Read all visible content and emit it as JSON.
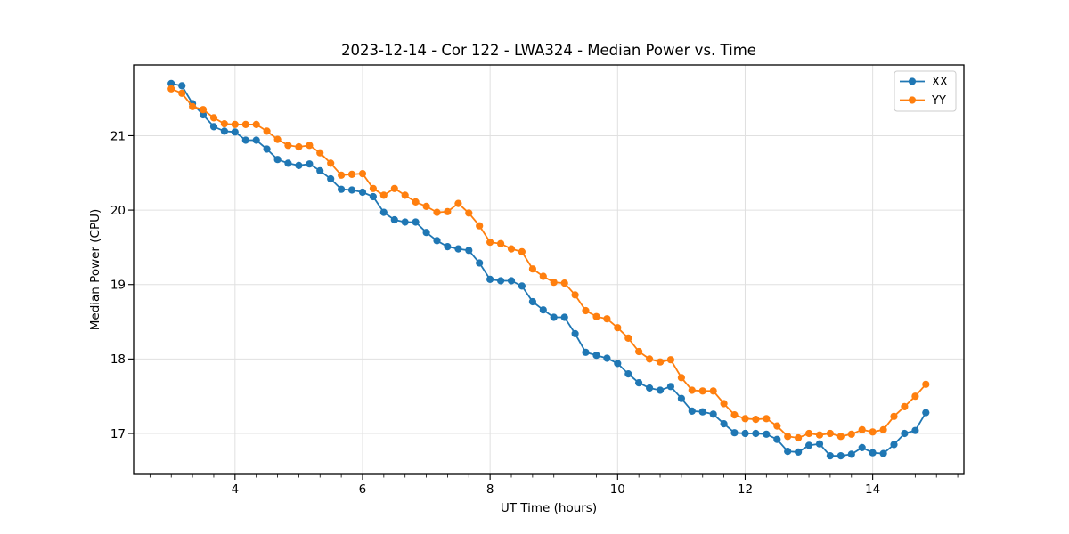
{
  "chart_data": {
    "type": "line",
    "title": "2023-12-14 - Cor 122 - LWA324 - Median Power vs. Time",
    "xlabel": "UT Time (hours)",
    "ylabel": "Median Power (CPU)",
    "xlim": [
      2.41,
      15.43
    ],
    "ylim": [
      16.45,
      21.95
    ],
    "x_major_ticks": [
      4,
      6,
      8,
      10,
      12,
      14
    ],
    "x_minor_tick_step": 0.333,
    "y_major_ticks": [
      17,
      18,
      19,
      20,
      21
    ],
    "grid": true,
    "grid_color": "#e0e0e0",
    "spine_color": "#000000",
    "legend_position": "upper right",
    "x": [
      3.0,
      3.167,
      3.333,
      3.5,
      3.667,
      3.833,
      4.0,
      4.167,
      4.333,
      4.5,
      4.667,
      4.833,
      5.0,
      5.167,
      5.333,
      5.5,
      5.667,
      5.833,
      6.0,
      6.167,
      6.333,
      6.5,
      6.667,
      6.833,
      7.0,
      7.167,
      7.333,
      7.5,
      7.667,
      7.833,
      8.0,
      8.167,
      8.333,
      8.5,
      8.667,
      8.833,
      9.0,
      9.167,
      9.333,
      9.5,
      9.667,
      9.833,
      10.0,
      10.167,
      10.333,
      10.5,
      10.667,
      10.833,
      11.0,
      11.167,
      11.333,
      11.5,
      11.667,
      11.833,
      12.0,
      12.167,
      12.333,
      12.5,
      12.667,
      12.833,
      13.0,
      13.167,
      13.333,
      13.5,
      13.667,
      13.833,
      14.0,
      14.167,
      14.333,
      14.5,
      14.667,
      14.833
    ],
    "series": [
      {
        "name": "XX",
        "color": "#1f77b4",
        "marker": "circle",
        "values": [
          21.7,
          21.67,
          21.43,
          21.28,
          21.12,
          21.06,
          21.05,
          20.94,
          20.94,
          20.82,
          20.68,
          20.63,
          20.6,
          20.62,
          20.53,
          20.42,
          20.28,
          20.27,
          20.24,
          20.18,
          19.97,
          19.87,
          19.84,
          19.84,
          19.7,
          19.59,
          19.51,
          19.48,
          19.46,
          19.29,
          19.07,
          19.05,
          19.05,
          18.98,
          18.77,
          18.66,
          18.56,
          18.56,
          18.34,
          18.09,
          18.05,
          18.01,
          17.94,
          17.8,
          17.68,
          17.61,
          17.58,
          17.63,
          17.47,
          17.3,
          17.29,
          17.26,
          17.13,
          17.01,
          17.0,
          17.0,
          16.99,
          16.92,
          16.76,
          16.75,
          16.84,
          16.86,
          16.7,
          16.7,
          16.72,
          16.81,
          16.74,
          16.73,
          16.85,
          17.0,
          17.04,
          17.28
        ]
      },
      {
        "name": "YY",
        "color": "#ff7f0e",
        "marker": "circle",
        "values": [
          21.63,
          21.57,
          21.39,
          21.35,
          21.24,
          21.16,
          21.15,
          21.15,
          21.15,
          21.06,
          20.95,
          20.87,
          20.85,
          20.87,
          20.77,
          20.63,
          20.47,
          20.48,
          20.49,
          20.29,
          20.2,
          20.29,
          20.2,
          20.11,
          20.05,
          19.97,
          19.98,
          20.09,
          19.96,
          19.79,
          19.57,
          19.55,
          19.48,
          19.44,
          19.21,
          19.11,
          19.03,
          19.02,
          18.86,
          18.65,
          18.57,
          18.54,
          18.42,
          18.28,
          18.1,
          18.0,
          17.96,
          17.99,
          17.75,
          17.58,
          17.57,
          17.57,
          17.4,
          17.25,
          17.2,
          17.19,
          17.2,
          17.1,
          16.96,
          16.94,
          17.0,
          16.98,
          17.0,
          16.96,
          16.99,
          17.05,
          17.02,
          17.05,
          17.23,
          17.36,
          17.5,
          17.66
        ]
      }
    ]
  }
}
